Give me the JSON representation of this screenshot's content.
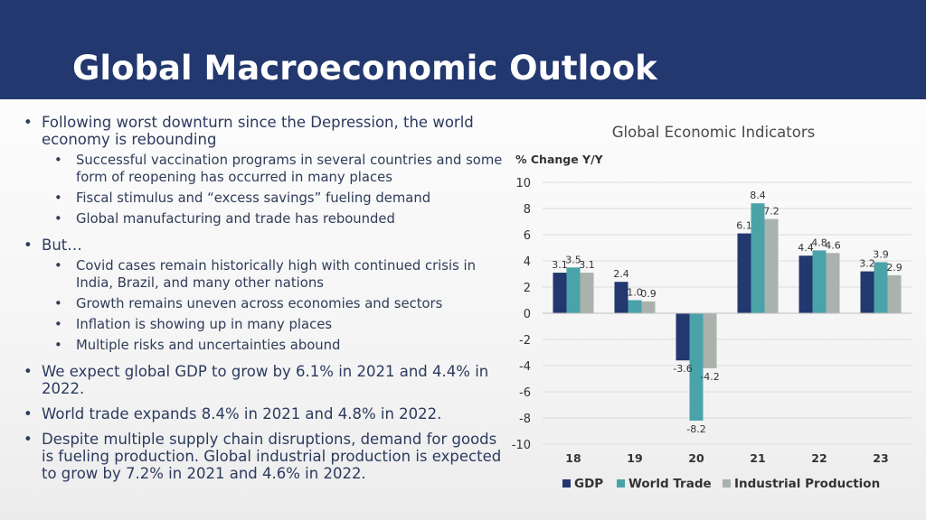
{
  "title": "Global Macroeconomic Outlook",
  "bullets": [
    {
      "level": 1,
      "text": "Following worst downturn since the Depression, the world economy is rebounding"
    },
    {
      "level": 2,
      "text": "Successful vaccination programs in several countries and some form of reopening has occurred in many places"
    },
    {
      "level": 2,
      "text": "Fiscal stimulus and “excess savings” fueling demand"
    },
    {
      "level": 2,
      "text": "Global manufacturing and trade has rebounded"
    },
    {
      "level": 1,
      "text": "But…"
    },
    {
      "level": 2,
      "text": "Covid cases remain historically high with continued crisis in India, Brazil, and many other nations"
    },
    {
      "level": 2,
      "text": "Growth remains uneven across economies and sectors"
    },
    {
      "level": 2,
      "text": "Inflation is showing up in many places"
    },
    {
      "level": 2,
      "text": "Multiple risks and uncertainties abound"
    },
    {
      "level": 1,
      "text": "We expect global GDP to grow by 6.1% in 2021 and 4.4% in 2022."
    },
    {
      "level": 1,
      "text": "World trade expands 8.4% in 2021 and 4.8% in 2022."
    },
    {
      "level": 1,
      "text": "Despite multiple supply chain disruptions, demand for goods is fueling production. Global industrial production is expected to grow by 7.2% in 2021 and 4.6% in 2022."
    }
  ],
  "chart_data": {
    "type": "bar",
    "title": "Global Economic Indicators",
    "ylabel": "% Change Y/Y",
    "xlabel": "",
    "categories": [
      "18",
      "19",
      "20",
      "21",
      "22",
      "23"
    ],
    "yticks": [
      "10",
      "8",
      "6",
      "4",
      "2",
      "0",
      "-2",
      "-4",
      "-6",
      "-8",
      "-10"
    ],
    "ylim": [
      -10,
      10
    ],
    "grid": true,
    "legend": "bottom",
    "series": [
      {
        "name": "GDP",
        "color": "#22386f",
        "values": [
          3.1,
          2.4,
          -3.6,
          6.1,
          4.4,
          3.2
        ],
        "labels": [
          "3.1",
          "2.4",
          "-3.6",
          "6.1",
          "4.4",
          "3.2"
        ]
      },
      {
        "name": "World Trade",
        "color": "#4aa3a9",
        "values": [
          3.5,
          1.0,
          -8.2,
          8.4,
          4.8,
          3.9
        ],
        "labels": [
          "3.5",
          "1.0",
          "-8.2",
          "8.4",
          "4.8",
          "3.9"
        ]
      },
      {
        "name": "Industrial Production",
        "color": "#a9b2ac",
        "values": [
          3.1,
          0.9,
          -4.2,
          7.2,
          4.6,
          2.9
        ],
        "labels": [
          "3.1",
          "0.9",
          "-4.2",
          "7.2",
          "4.6",
          "2.9"
        ]
      }
    ]
  }
}
